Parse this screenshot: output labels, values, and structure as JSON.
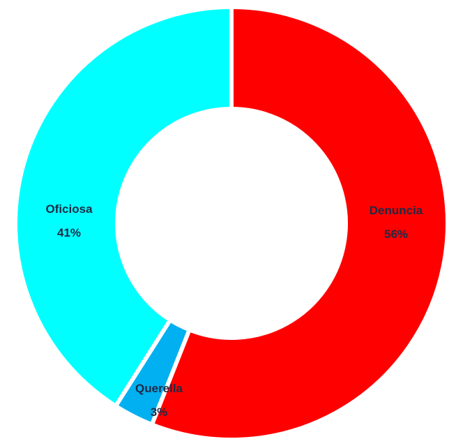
{
  "chart_data": {
    "type": "pie",
    "title": "",
    "slices": [
      {
        "label": "Denuncia",
        "value": 56,
        "percent_label": "56%",
        "color": "#ff0000"
      },
      {
        "label": "Querella",
        "value": 3,
        "percent_label": "3%",
        "color": "#00b0f0"
      },
      {
        "label": "Oficiosa",
        "value": 41,
        "percent_label": "41%",
        "color": "#00ffff"
      }
    ],
    "donut": true,
    "start_angle": "top",
    "direction": "clockwise"
  }
}
